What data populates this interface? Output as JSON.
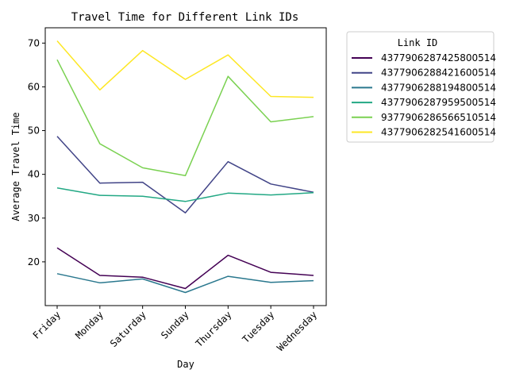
{
  "chart_data": {
    "type": "line",
    "title": "Travel Time for Different Link IDs",
    "xlabel": "Day",
    "ylabel": "Average Travel Time",
    "categories": [
      "Friday",
      "Monday",
      "Saturday",
      "Sunday",
      "Thursday",
      "Tuesday",
      "Wednesday"
    ],
    "ylim": [
      10,
      73.5
    ],
    "yticks": [
      20,
      30,
      40,
      50,
      60,
      70
    ],
    "grid": false,
    "legend": {
      "title": "Link ID",
      "placement": "outside-right"
    },
    "series": [
      {
        "name": "4377906287425800514",
        "color": "#440154",
        "values": [
          23.2,
          16.9,
          16.5,
          13.9,
          21.5,
          17.6,
          16.9
        ]
      },
      {
        "name": "4377906288421600514",
        "color": "#414487",
        "values": [
          48.7,
          38.0,
          38.2,
          31.2,
          42.9,
          37.8,
          35.9
        ]
      },
      {
        "name": "4377906288194800514",
        "color": "#2a788e",
        "values": [
          17.3,
          15.2,
          16.1,
          13.0,
          16.7,
          15.3,
          15.7
        ]
      },
      {
        "name": "4377906287959500514",
        "color": "#22a884",
        "values": [
          36.9,
          35.2,
          35.0,
          33.8,
          35.7,
          35.3,
          35.8
        ]
      },
      {
        "name": "9377906286566510514",
        "color": "#7ad151",
        "values": [
          66.2,
          47.0,
          41.5,
          39.7,
          62.4,
          52.0,
          53.2
        ]
      },
      {
        "name": "4377906282541600514",
        "color": "#fde725",
        "values": [
          70.5,
          59.3,
          68.3,
          61.7,
          67.3,
          57.8,
          57.6
        ]
      }
    ]
  }
}
